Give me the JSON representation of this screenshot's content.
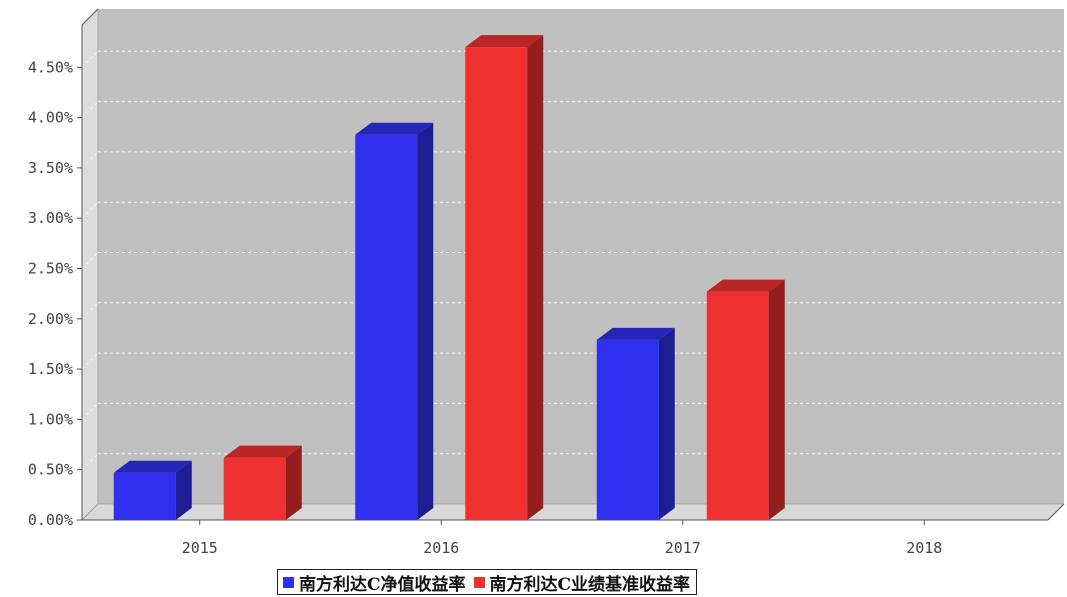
{
  "chart_data": {
    "type": "bar",
    "title": "",
    "xlabel": "",
    "ylabel": "",
    "categories": [
      "2015",
      "2016",
      "2017",
      "2018"
    ],
    "series": [
      {
        "name": "南方利达C净值收益率",
        "color": "#2f2fef",
        "values": [
          0.47,
          3.83,
          1.79,
          null
        ]
      },
      {
        "name": "南方利达C业绩基准收益率",
        "color": "#ee3030",
        "values": [
          0.62,
          4.7,
          2.27,
          null
        ]
      }
    ],
    "ylim": [
      0,
      5.0
    ],
    "yticks": [
      "0.00%",
      "0.50%",
      "1.00%",
      "1.50%",
      "2.00%",
      "2.50%",
      "3.00%",
      "3.50%",
      "4.00%",
      "4.50%"
    ],
    "grid": true,
    "legend_position": "bottom-center",
    "plot_background": "#c0c0c0"
  }
}
